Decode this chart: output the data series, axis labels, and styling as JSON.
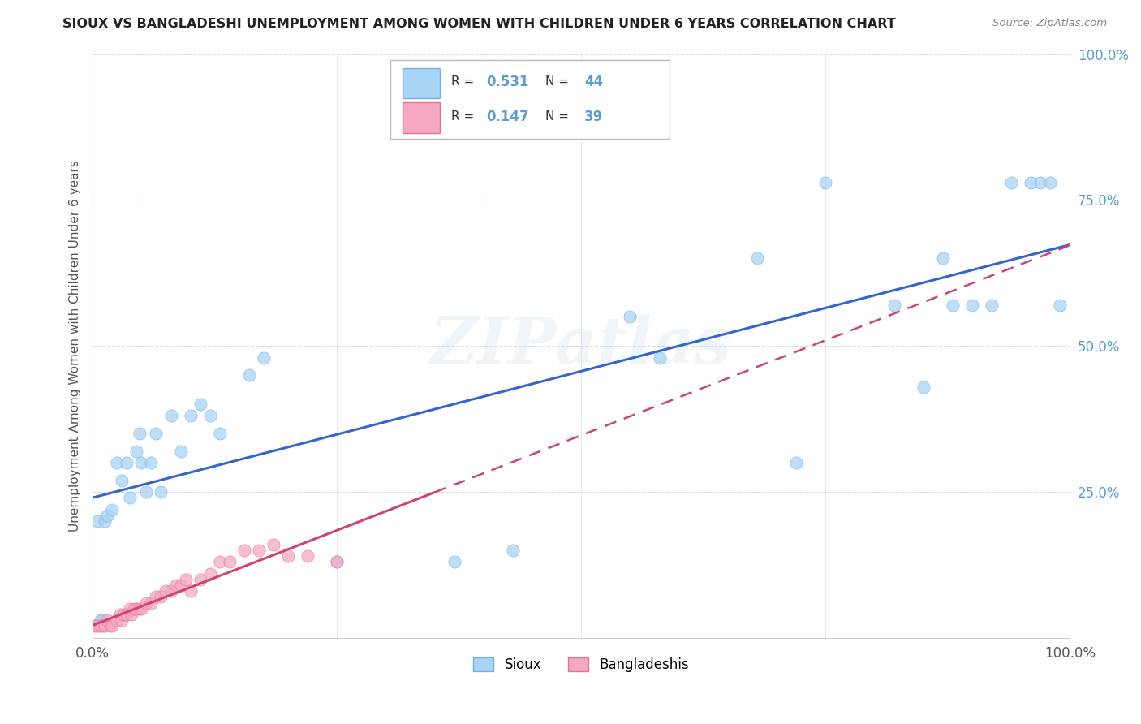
{
  "title": "SIOUX VS BANGLADESHI UNEMPLOYMENT AMONG WOMEN WITH CHILDREN UNDER 6 YEARS CORRELATION CHART",
  "source": "Source: ZipAtlas.com",
  "ylabel": "Unemployment Among Women with Children Under 6 years",
  "legend_label1": "Sioux",
  "legend_label2": "Bangladeshis",
  "r1": "0.531",
  "n1": "44",
  "r2": "0.147",
  "n2": "39",
  "sioux_color": "#A8D4F5",
  "bangladeshi_color": "#F5A8C0",
  "sioux_edge_color": "#6EB0E8",
  "bangladeshi_edge_color": "#E87090",
  "sioux_line_color": "#3366CC",
  "bangladeshi_line_color": "#CC4477",
  "watermark": "ZIPatlas",
  "sioux_x": [
    0.005,
    0.008,
    0.01,
    0.012,
    0.015,
    0.02,
    0.025,
    0.03,
    0.035,
    0.038,
    0.045,
    0.048,
    0.05,
    0.055,
    0.06,
    0.065,
    0.07,
    0.08,
    0.09,
    0.1,
    0.11,
    0.12,
    0.13,
    0.16,
    0.175,
    0.25,
    0.37,
    0.43,
    0.55,
    0.58,
    0.68,
    0.72,
    0.75,
    0.82,
    0.85,
    0.87,
    0.88,
    0.9,
    0.92,
    0.94,
    0.96,
    0.97,
    0.98,
    0.99
  ],
  "sioux_y": [
    0.2,
    0.03,
    0.03,
    0.2,
    0.21,
    0.22,
    0.3,
    0.27,
    0.3,
    0.24,
    0.32,
    0.35,
    0.3,
    0.25,
    0.3,
    0.35,
    0.25,
    0.38,
    0.32,
    0.38,
    0.4,
    0.38,
    0.35,
    0.45,
    0.48,
    0.13,
    0.13,
    0.15,
    0.55,
    0.48,
    0.65,
    0.3,
    0.78,
    0.57,
    0.43,
    0.65,
    0.57,
    0.57,
    0.57,
    0.78,
    0.78,
    0.78,
    0.78,
    0.57
  ],
  "bang_x": [
    0.002,
    0.005,
    0.008,
    0.01,
    0.012,
    0.015,
    0.018,
    0.02,
    0.025,
    0.028,
    0.03,
    0.032,
    0.035,
    0.038,
    0.04,
    0.042,
    0.045,
    0.048,
    0.05,
    0.055,
    0.06,
    0.065,
    0.07,
    0.075,
    0.08,
    0.085,
    0.09,
    0.095,
    0.1,
    0.11,
    0.12,
    0.13,
    0.14,
    0.155,
    0.17,
    0.185,
    0.2,
    0.22,
    0.25
  ],
  "bang_y": [
    0.02,
    0.02,
    0.02,
    0.02,
    0.02,
    0.03,
    0.02,
    0.02,
    0.03,
    0.04,
    0.03,
    0.04,
    0.04,
    0.05,
    0.04,
    0.05,
    0.05,
    0.05,
    0.05,
    0.06,
    0.06,
    0.07,
    0.07,
    0.08,
    0.08,
    0.09,
    0.09,
    0.1,
    0.08,
    0.1,
    0.11,
    0.13,
    0.13,
    0.15,
    0.15,
    0.16,
    0.14,
    0.14,
    0.13
  ],
  "xlim": [
    0,
    1
  ],
  "ylim": [
    0,
    1
  ],
  "ytick_vals": [
    0.25,
    0.5,
    0.75,
    1.0
  ],
  "ytick_labels": [
    "25.0%",
    "50.0%",
    "75.0%",
    "100.0%"
  ],
  "background_color": "#FFFFFF",
  "grid_color": "#CCCCCC",
  "axis_label_color": "#5B9BD5",
  "title_color": "#222222"
}
